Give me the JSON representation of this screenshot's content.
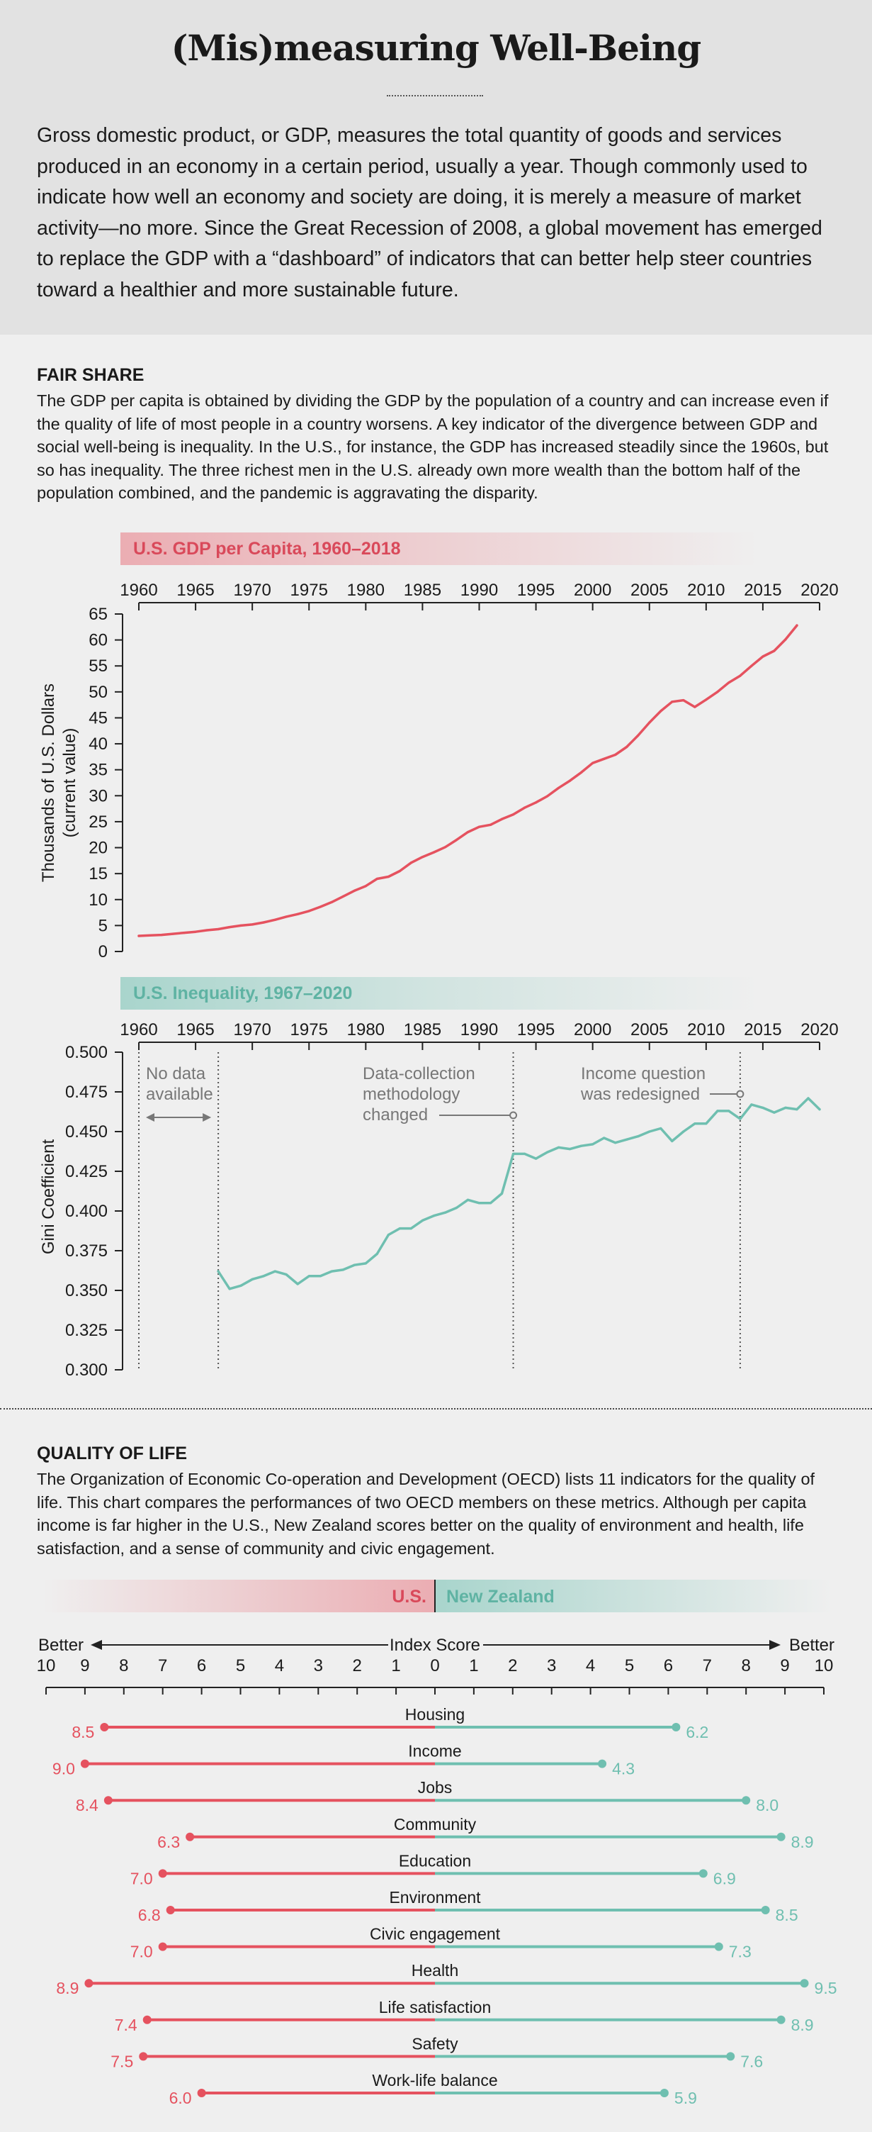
{
  "page": {
    "title": "(Mis)measuring Well-Being",
    "intro": "Gross domestic product, or GDP, measures the total quantity of goods and services produced in an economy in a certain period, usually a year. Though commonly used to indicate how well an economy and society are doing, it is merely a measure of market activity—no more. Since the Great Recession of 2008, a global movement has emerged to replace the GDP with a “dashboard” of indicators that can better help steer countries toward a healthier and more sustainable future."
  },
  "fair_share": {
    "heading": "FAIR SHARE",
    "text": "The GDP per capita is obtained by dividing the GDP by the population of a country and can increase even if the quality of life of most people in a country worsens. A key indicator of the divergence between GDP and social well-being is inequality. In the U.S., for instance, the GDP has increased steadily since the 1960s, but so has inequality. The three richest men in the U.S. already own more wealth than the bottom half of the population combined, and the pandemic is aggravating the disparity."
  },
  "quality": {
    "heading": "QUALITY OF LIFE",
    "text": "The Organization of Economic Co-operation and Development (OECD) lists 11 indicators for the quality of life. This chart compares the performances of two OECD members on these metrics. Although per capita income is far higher in the U.S., New Zealand scores better on the quality of environment and health, life satisfaction, and a sense of community and civic engagement."
  },
  "colors": {
    "us": "#e5525f",
    "nz": "#6fbfb0",
    "axis": "#222222",
    "annotation": "#777777"
  },
  "chart_data": [
    {
      "type": "line",
      "title": "U.S. GDP per Capita, 1960–2018",
      "ylabel": "Thousands of U.S. Dollars",
      "ylabel2": "(current value)",
      "xlim": [
        1960,
        2020
      ],
      "ylim": [
        0,
        65
      ],
      "xticks": [
        1960,
        1965,
        1970,
        1975,
        1980,
        1985,
        1990,
        1995,
        2000,
        2005,
        2010,
        2015,
        2020
      ],
      "yticks": [
        0,
        5,
        10,
        15,
        20,
        25,
        30,
        35,
        40,
        45,
        50,
        55,
        60,
        65
      ],
      "color": "#e5525f",
      "x": [
        1960,
        1961,
        1962,
        1963,
        1964,
        1965,
        1966,
        1967,
        1968,
        1969,
        1970,
        1971,
        1972,
        1973,
        1974,
        1975,
        1976,
        1977,
        1978,
        1979,
        1980,
        1981,
        1982,
        1983,
        1984,
        1985,
        1986,
        1987,
        1988,
        1989,
        1990,
        1991,
        1992,
        1993,
        1994,
        1995,
        1996,
        1997,
        1998,
        1999,
        2000,
        2001,
        2002,
        2003,
        2004,
        2005,
        2006,
        2007,
        2008,
        2009,
        2010,
        2011,
        2012,
        2013,
        2014,
        2015,
        2016,
        2017,
        2018
      ],
      "y": [
        3.0,
        3.1,
        3.2,
        3.4,
        3.6,
        3.8,
        4.1,
        4.3,
        4.7,
        5.0,
        5.2,
        5.6,
        6.1,
        6.7,
        7.2,
        7.8,
        8.6,
        9.5,
        10.6,
        11.7,
        12.6,
        14.0,
        14.4,
        15.5,
        17.1,
        18.2,
        19.1,
        20.1,
        21.5,
        23.0,
        24.0,
        24.4,
        25.5,
        26.4,
        27.7,
        28.7,
        29.9,
        31.5,
        32.9,
        34.5,
        36.3,
        37.1,
        37.9,
        39.4,
        41.6,
        44.1,
        46.3,
        48.1,
        48.4,
        47.1,
        48.5,
        50.0,
        51.8,
        53.1,
        55.0,
        56.8,
        57.9,
        60.1,
        62.8
      ]
    },
    {
      "type": "line",
      "title": "U.S. Inequality, 1967–2020",
      "ylabel": "Gini Coefficient",
      "xlim": [
        1960,
        2020
      ],
      "ylim": [
        0.3,
        0.5
      ],
      "xticks": [
        1960,
        1965,
        1970,
        1975,
        1980,
        1985,
        1990,
        1995,
        2000,
        2005,
        2010,
        2015,
        2020
      ],
      "yticks": [
        0.3,
        0.325,
        0.35,
        0.375,
        0.4,
        0.425,
        0.45,
        0.475,
        0.5
      ],
      "ytick_labels": [
        "0.300",
        "0.325",
        "0.350",
        "0.375",
        "0.400",
        "0.425",
        "0.450",
        "0.475",
        "0.500"
      ],
      "color": "#6fbfb0",
      "x": [
        1967,
        1968,
        1969,
        1970,
        1971,
        1972,
        1973,
        1974,
        1975,
        1976,
        1977,
        1978,
        1979,
        1980,
        1981,
        1982,
        1983,
        1984,
        1985,
        1986,
        1987,
        1988,
        1989,
        1990,
        1991,
        1992,
        1993,
        1994,
        1995,
        1996,
        1997,
        1998,
        1999,
        2000,
        2001,
        2002,
        2003,
        2004,
        2005,
        2006,
        2007,
        2008,
        2009,
        2010,
        2011,
        2012,
        2013,
        2014,
        2015,
        2016,
        2017,
        2018,
        2019,
        2020
      ],
      "y": [
        0.362,
        0.351,
        0.353,
        0.357,
        0.359,
        0.362,
        0.36,
        0.354,
        0.359,
        0.359,
        0.362,
        0.363,
        0.366,
        0.367,
        0.373,
        0.385,
        0.389,
        0.389,
        0.394,
        0.397,
        0.399,
        0.402,
        0.407,
        0.405,
        0.405,
        0.411,
        0.436,
        0.436,
        0.433,
        0.437,
        0.44,
        0.439,
        0.441,
        0.442,
        0.446,
        0.443,
        0.445,
        0.447,
        0.45,
        0.452,
        0.444,
        0.45,
        0.455,
        0.455,
        0.463,
        0.463,
        0.458,
        0.467,
        0.465,
        0.462,
        0.465,
        0.464,
        0.471,
        0.464
      ],
      "annotations": [
        {
          "text_lines": [
            "No data",
            "available"
          ],
          "x_from": 1960,
          "x_to": 1967
        },
        {
          "text_lines": [
            "Data-collection",
            "methodology",
            "changed"
          ],
          "x": 1993
        },
        {
          "text_lines": [
            "Income question",
            "was redesigned"
          ],
          "x": 2013
        }
      ]
    },
    {
      "type": "bar",
      "title_left": "U.S.",
      "title_right": "New Zealand",
      "axis_label": "Index Score",
      "left_label": "Better",
      "right_label": "Better",
      "xticks": [
        10,
        9,
        8,
        7,
        6,
        5,
        4,
        3,
        2,
        1,
        0,
        1,
        2,
        3,
        4,
        5,
        6,
        7,
        8,
        9,
        10
      ],
      "xlim": [
        0,
        10
      ],
      "categories": [
        "Housing",
        "Income",
        "Jobs",
        "Community",
        "Education",
        "Environment",
        "Civic engagement",
        "Health",
        "Life satisfaction",
        "Safety",
        "Work-life balance"
      ],
      "series": [
        {
          "name": "U.S.",
          "color": "#e5525f",
          "values": [
            8.5,
            9.0,
            8.4,
            6.3,
            7.0,
            6.8,
            7.0,
            8.9,
            7.4,
            7.5,
            6.0
          ],
          "labels": [
            "8.5",
            "9.0",
            "8.4",
            "6.3",
            "7.0",
            "6.8",
            "7.0",
            "8.9",
            "7.4",
            "7.5",
            "6.0"
          ]
        },
        {
          "name": "New Zealand",
          "color": "#6fbfb0",
          "values": [
            6.2,
            4.3,
            8.0,
            8.9,
            6.9,
            8.5,
            7.3,
            9.5,
            8.9,
            7.6,
            5.9
          ],
          "labels": [
            "6.2",
            "4.3",
            "8.0",
            "8.9",
            "6.9",
            "8.5",
            "7.3",
            "9.5",
            "8.9",
            "7.6",
            "5.9"
          ]
        }
      ]
    }
  ]
}
